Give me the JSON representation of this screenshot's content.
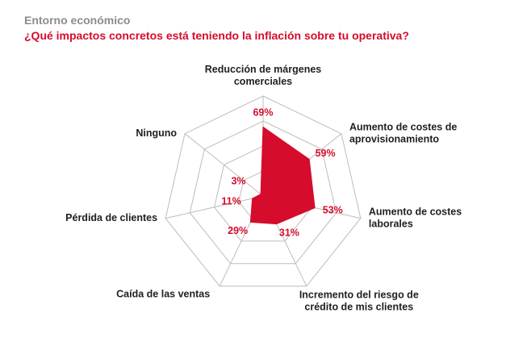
{
  "header": {
    "supertitle": "Entorno económico",
    "title": "¿Qué impactos concretos está teniendo la inflación sobre tu operativa?"
  },
  "colors": {
    "accent": "#d50c2c",
    "grid": "#bdbdbd",
    "text": "#1f1f1f",
    "supertitle": "#8c8c8c"
  },
  "chart_data": {
    "type": "radar",
    "title": "¿Qué impactos concretos está teniendo la inflación sobre tu operativa?",
    "rmax": 100,
    "grid_levels": [
      25,
      50,
      75,
      100
    ],
    "categories": [
      [
        "Reducción de márgenes",
        "comerciales"
      ],
      [
        "Aumento de costes de",
        "aprovisionamiento"
      ],
      [
        "Aumento de costes",
        "laborales"
      ],
      [
        "Incremento del riesgo de",
        "crédito de mis clientes"
      ],
      [
        "Caída de las ventas"
      ],
      [
        "Pérdida de clientes"
      ],
      [
        "Ninguno"
      ]
    ],
    "values": [
      69,
      59,
      53,
      31,
      29,
      11,
      3
    ],
    "value_labels": [
      "69%",
      "59%",
      "53%",
      "31%",
      "29%",
      "11%",
      "3%"
    ]
  }
}
